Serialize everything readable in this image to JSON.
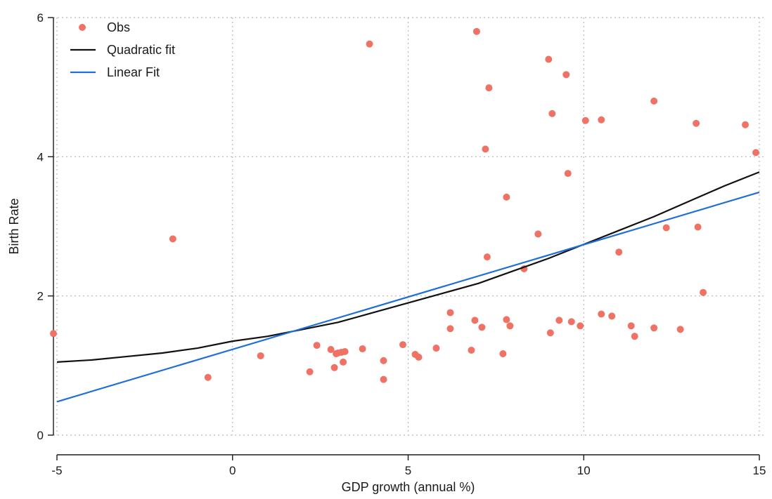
{
  "chart_data": {
    "type": "scatter",
    "xlabel": "GDP growth (annual %)",
    "ylabel": "Birth Rate",
    "xlim": [
      -5.1,
      15.2
    ],
    "ylim": [
      0,
      6
    ],
    "xticks": [
      -5,
      0,
      5,
      10,
      15
    ],
    "yticks": [
      0,
      2,
      4,
      6
    ],
    "grid": true,
    "legend_position": "top-left",
    "colors": {
      "obs": "#f07265",
      "quadratic": "#111111",
      "linear": "#1f6fd6"
    },
    "series": [
      {
        "name": "Obs",
        "kind": "points",
        "points": [
          [
            -5.1,
            1.46
          ],
          [
            -1.7,
            2.82
          ],
          [
            -0.7,
            0.83
          ],
          [
            0.8,
            1.14
          ],
          [
            2.2,
            0.91
          ],
          [
            2.4,
            1.29
          ],
          [
            2.8,
            1.23
          ],
          [
            2.9,
            0.97
          ],
          [
            2.95,
            1.17
          ],
          [
            3.0,
            1.18
          ],
          [
            3.1,
            1.19
          ],
          [
            3.15,
            1.05
          ],
          [
            3.2,
            1.2
          ],
          [
            3.7,
            1.24
          ],
          [
            3.9,
            5.62
          ],
          [
            4.3,
            1.07
          ],
          [
            4.3,
            0.8
          ],
          [
            4.85,
            1.3
          ],
          [
            5.2,
            1.16
          ],
          [
            5.3,
            1.12
          ],
          [
            5.8,
            1.25
          ],
          [
            6.2,
            1.53
          ],
          [
            6.2,
            1.76
          ],
          [
            6.8,
            1.22
          ],
          [
            6.9,
            1.65
          ],
          [
            6.95,
            5.8
          ],
          [
            7.1,
            1.55
          ],
          [
            7.2,
            4.11
          ],
          [
            7.25,
            2.56
          ],
          [
            7.3,
            4.99
          ],
          [
            7.7,
            1.17
          ],
          [
            7.8,
            3.42
          ],
          [
            7.8,
            1.66
          ],
          [
            7.9,
            1.57
          ],
          [
            8.3,
            2.39
          ],
          [
            8.7,
            2.89
          ],
          [
            9.0,
            5.4
          ],
          [
            9.05,
            1.47
          ],
          [
            9.1,
            4.62
          ],
          [
            9.3,
            1.65
          ],
          [
            9.5,
            5.18
          ],
          [
            9.55,
            3.76
          ],
          [
            9.65,
            1.63
          ],
          [
            9.9,
            1.57
          ],
          [
            10.05,
            4.52
          ],
          [
            10.5,
            4.53
          ],
          [
            10.5,
            1.74
          ],
          [
            10.8,
            1.71
          ],
          [
            11.0,
            2.63
          ],
          [
            11.35,
            1.57
          ],
          [
            11.45,
            1.42
          ],
          [
            12.0,
            4.8
          ],
          [
            12.0,
            1.54
          ],
          [
            12.35,
            2.98
          ],
          [
            12.75,
            1.52
          ],
          [
            13.2,
            4.48
          ],
          [
            13.25,
            2.99
          ],
          [
            13.4,
            2.05
          ],
          [
            14.6,
            4.46
          ],
          [
            14.9,
            4.06
          ]
        ]
      },
      {
        "name": "Quadratic fit",
        "kind": "line",
        "x": [
          -5,
          -4,
          -3,
          -2,
          -1,
          0,
          1,
          2,
          3,
          4,
          5,
          6,
          7,
          8,
          9,
          10,
          11,
          12,
          13,
          14,
          15
        ],
        "y": [
          1.05,
          1.08,
          1.13,
          1.18,
          1.25,
          1.35,
          1.42,
          1.52,
          1.62,
          1.76,
          1.9,
          2.04,
          2.18,
          2.36,
          2.54,
          2.74,
          2.94,
          3.14,
          3.36,
          3.58,
          3.78
        ]
      },
      {
        "name": "Linear Fit",
        "kind": "line",
        "x": [
          -5,
          15
        ],
        "y": [
          0.48,
          3.49
        ]
      }
    ]
  }
}
